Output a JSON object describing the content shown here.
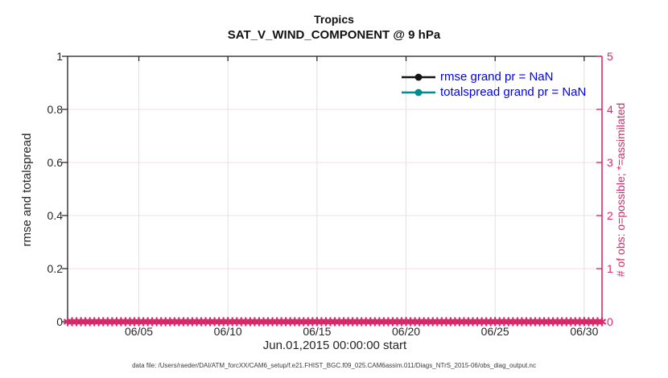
{
  "header": {
    "title": "Tropics",
    "subtitle": "SAT_V_WIND_COMPONENT @ 9 hPa"
  },
  "axes": {
    "y_left_label": "rmse and totalspread",
    "y_right_label": "# of obs: o=possible; *=assimilated",
    "x_label": "Jun.01,2015 00:00:00 start"
  },
  "legend": {
    "items": [
      {
        "label": "rmse grand pr = NaN",
        "color": "#141414",
        "marker": "filled-circle"
      },
      {
        "label": "totalspread grand pr = NaN",
        "color": "#008c8c",
        "marker": "filled-circle"
      }
    ],
    "text_color": "#0000ee"
  },
  "caption": "data file: /Users/raeder/DAI/ATM_forcXX/CAM6_setup/f.e21.FHIST_BGC.f09_025.CAM6assim.011/Diags_NTrS_2015-06/obs_diag_output.nc",
  "colors": {
    "axis_black": "#1a1a1a",
    "axis_pink": "#d92a6a",
    "grid_gray": "#e0e0e0",
    "grid_pink": "#f7dbe6",
    "legend_blue": "#0000ee",
    "teal": "#008c8c"
  },
  "chart_data": {
    "type": "line",
    "title": "Tropics",
    "subtitle": "SAT_V_WIND_COMPONENT @ 9 hPa",
    "x_axis": {
      "label": "Jun.01,2015 00:00:00 start",
      "tick_labels": [
        "06/05",
        "06/10",
        "06/15",
        "06/20",
        "06/25",
        "06/30"
      ],
      "tick_days": [
        5,
        10,
        15,
        20,
        25,
        30
      ],
      "range_days": [
        1,
        31
      ]
    },
    "y_left_axis": {
      "label": "rmse and totalspread",
      "lim": [
        0,
        1
      ],
      "ticks": [
        0,
        0.2,
        0.4,
        0.6,
        0.8,
        1
      ]
    },
    "y_right_axis": {
      "label": "# of obs: o=possible; *=assimilated",
      "lim": [
        0,
        5
      ],
      "ticks": [
        0,
        1,
        2,
        3,
        4,
        5
      ]
    },
    "grid": true,
    "legend_location": "inside-top-right",
    "series": [
      {
        "name": "rmse grand pr = NaN",
        "axis": "left",
        "color": "#141414",
        "marker": "filled-circle",
        "values_note": "all NaN - no curve plotted"
      },
      {
        "name": "totalspread grand pr = NaN",
        "axis": "left",
        "color": "#008c8c",
        "marker": "filled-circle",
        "values_note": "all NaN - no curve plotted"
      },
      {
        "name": "# obs possible (o) and assimilated (*)",
        "axis": "right",
        "color": "#d92a6a",
        "marker": "asterisk",
        "value_constant": 0,
        "day_range": [
          1,
          31
        ],
        "time_step_days": 0.25
      }
    ]
  }
}
